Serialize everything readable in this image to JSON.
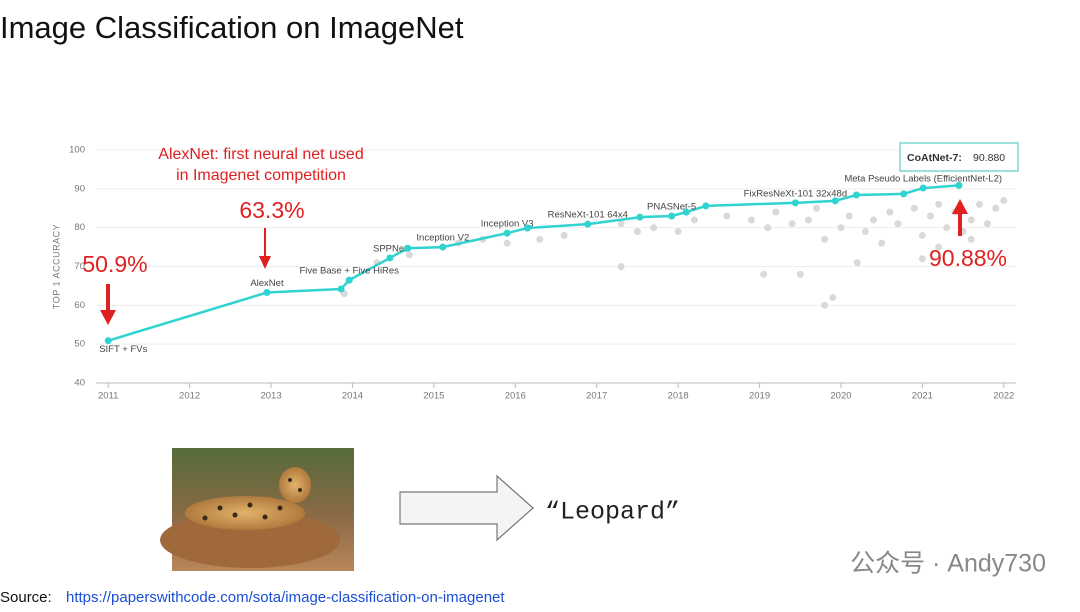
{
  "slide": {
    "title": "Image Classification on ImageNet",
    "output": "“Leopard”",
    "source_label": "Source:",
    "source_url": "https://paperswithcode.com/sota/image-classification-on-imagenet",
    "watermark": "公众号 · Andy730"
  },
  "chart_data": {
    "type": "line",
    "ylabel": "TOP 1 ACCURACY",
    "xlim": [
      2010.85,
      2022.15
    ],
    "ylim": [
      40,
      100
    ],
    "xticks": [
      2011,
      2012,
      2013,
      2014,
      2015,
      2016,
      2017,
      2018,
      2019,
      2020,
      2021,
      2022
    ],
    "yticks": [
      40,
      50,
      60,
      70,
      80,
      90,
      100
    ],
    "series": [
      {
        "color": "#2fd3cf",
        "x": [
          2011.0,
          2012.95,
          2013.86,
          2013.96,
          2014.46,
          2014.68,
          2015.11,
          2015.9,
          2016.15,
          2016.89,
          2017.53,
          2017.92,
          2018.1,
          2018.34,
          2019.44,
          2019.93,
          2020.19,
          2020.77,
          2021.01,
          2021.45
        ],
        "values": [
          50.9,
          63.3,
          64.2,
          66.5,
          72.2,
          74.7,
          75.0,
          78.6,
          79.9,
          80.9,
          82.7,
          83.0,
          84.0,
          85.6,
          86.4,
          86.9,
          88.4,
          88.7,
          90.2,
          90.88
        ],
        "point_labels": [
          "SIFT + FVs",
          "AlexNet",
          null,
          "Five Base + Five HiRes",
          "SPPNet",
          null,
          "Inception V2",
          "Inception V3",
          null,
          "ResNeXt-101 64x4",
          null,
          "PNASNet-5",
          null,
          null,
          "FixResNeXt-101 32x48d",
          null,
          null,
          null,
          "Meta Pseudo Labels (EfficientNet-L2)",
          null
        ]
      },
      {
        "color": "#d9d9d9",
        "x": [
          2013.9,
          2014.3,
          2014.7,
          2015.3,
          2015.6,
          2015.9,
          2016.3,
          2016.6,
          2017.3,
          2017.5,
          2017.7,
          2018.0,
          2018.2,
          2018.6,
          2018.9,
          2019.1,
          2019.2,
          2019.4,
          2019.6,
          2019.7,
          2019.8,
          2019.8,
          2019.9,
          2020.0,
          2020.1,
          2020.3,
          2020.4,
          2020.6,
          2020.7,
          2020.9,
          2021.0,
          2021.1,
          2021.2,
          2021.3,
          2021.4,
          2021.5,
          2021.6,
          2021.7,
          2021.8,
          2021.9,
          2022.0,
          2021.2,
          2020.5,
          2019.5,
          2021.6,
          2021.0,
          2020.2,
          2017.3,
          2019.05
        ],
        "values": [
          63,
          71,
          73,
          76,
          77,
          76,
          77,
          78,
          81,
          79,
          80,
          79,
          82,
          83,
          82,
          80,
          84,
          81,
          82,
          85,
          77,
          60,
          62,
          80,
          83,
          79,
          82,
          84,
          81,
          85,
          78,
          83,
          86,
          80,
          84,
          79,
          82,
          86,
          81,
          85,
          87,
          75,
          76,
          68,
          77,
          72,
          71,
          70,
          68
        ]
      }
    ],
    "tooltip": {
      "name": "CoAtNet-7:",
      "value": "90.880"
    },
    "annotations": [
      "AlexNet: first neural net used",
      "in Imagenet competition",
      "63.3%",
      "50.9%",
      "90.88%"
    ]
  }
}
